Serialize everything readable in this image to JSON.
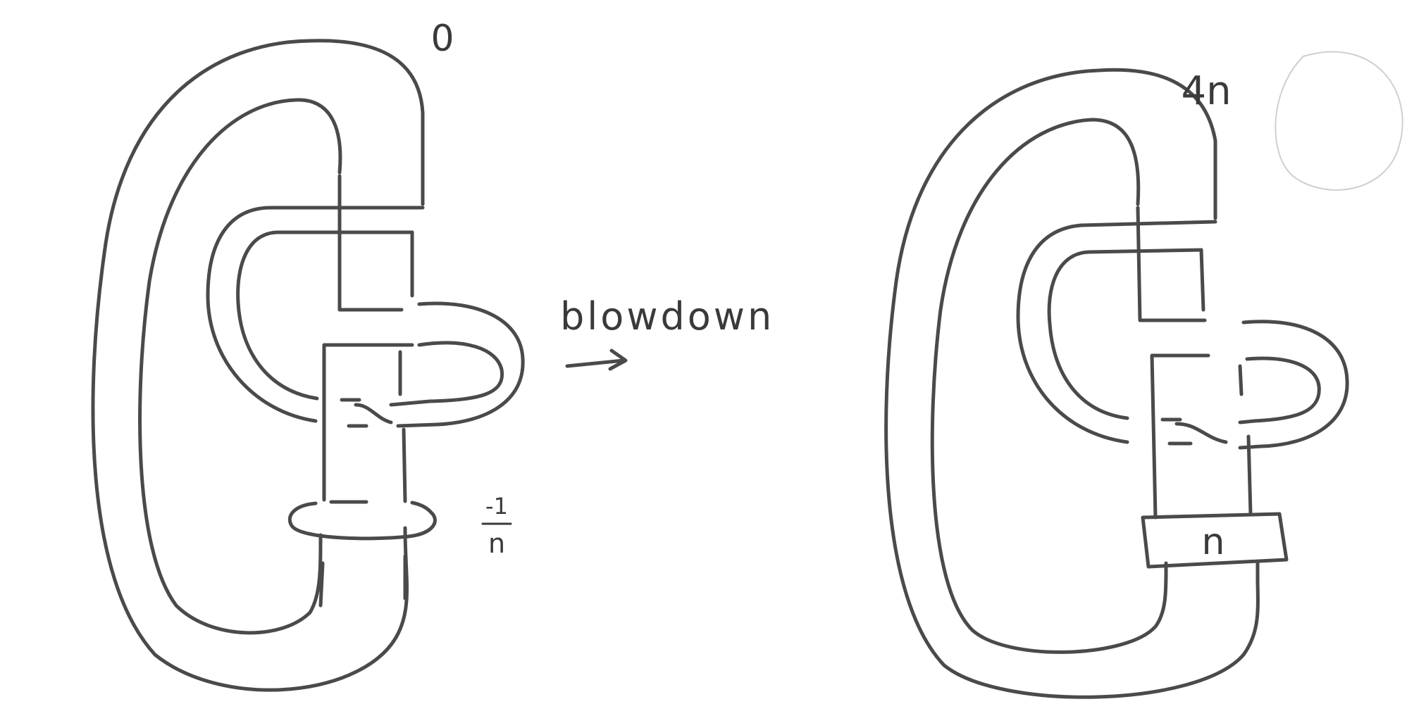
{
  "left_diagram": {
    "framing_label": "0",
    "surgery_label_num": "-1",
    "surgery_label_den": "n"
  },
  "arrow": {
    "label": "blowdown"
  },
  "right_diagram": {
    "framing_label": "4n",
    "twist_box_label": "n"
  }
}
